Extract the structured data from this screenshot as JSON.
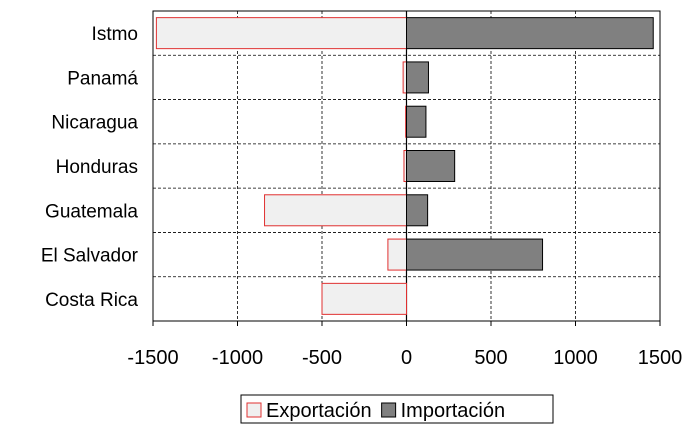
{
  "chart_data": {
    "type": "bar",
    "orientation": "horizontal",
    "stacking": "diverging",
    "categories": [
      "Istmo",
      "Panamá",
      "Nicaragua",
      "Honduras",
      "Guatemala",
      "El Salvador",
      "Costa Rica"
    ],
    "series": [
      {
        "name": "Exportación",
        "values": [
          -1480,
          -20,
          -5,
          -15,
          -840,
          -110,
          -500
        ],
        "color": "#f0f0f0",
        "stroke": "#e03030"
      },
      {
        "name": "Importación",
        "values": [
          1460,
          130,
          115,
          285,
          125,
          805,
          0
        ],
        "color": "#808080",
        "stroke": "#000000"
      }
    ],
    "title": "",
    "xlabel": "",
    "ylabel": "",
    "xlim": [
      -1500,
      1500
    ],
    "xticks": [
      -1500,
      -1000,
      -500,
      0,
      500,
      1000,
      1500
    ],
    "xtick_labels": [
      "-1500",
      "-1000",
      "-500",
      "0",
      "500",
      "1000",
      "1500"
    ],
    "grid": true,
    "legend_position": "bottom"
  }
}
